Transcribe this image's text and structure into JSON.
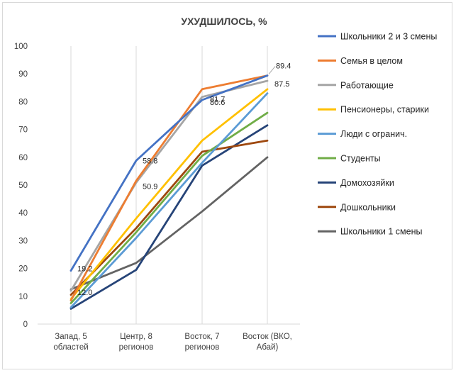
{
  "chart_data": {
    "type": "line",
    "title": "УХУДШИЛОСЬ, %",
    "xlabel": "",
    "ylabel": "",
    "ylim": [
      0,
      100
    ],
    "yticks": [
      0,
      10,
      20,
      30,
      40,
      50,
      60,
      70,
      80,
      90,
      100
    ],
    "grid": "vertical",
    "legend_position": "right",
    "categories": [
      [
        "Запад, 5",
        "областей"
      ],
      [
        "Центр, 8",
        "регионов"
      ],
      [
        "Восток, 7",
        "регионов"
      ],
      [
        "Восток (ВКО,",
        "Абай)"
      ]
    ],
    "series": [
      {
        "name": "Школьники 2 и 3 смены",
        "color": "#4472C4",
        "values": [
          19.2,
          58.8,
          80.6,
          89.4
        ]
      },
      {
        "name": "Семья в целом",
        "color": "#ED7D31",
        "values": [
          8.5,
          51.5,
          84.5,
          89.4
        ]
      },
      {
        "name": "Работающие",
        "color": "#A5A5A5",
        "values": [
          12.0,
          50.9,
          81.7,
          87.5
        ]
      },
      {
        "name": "Пенсионеры, старики",
        "color": "#FFC000",
        "values": [
          9.0,
          38.0,
          66.0,
          84.5
        ]
      },
      {
        "name": "Люди с огранич.",
        "color": "#5B9BD5",
        "values": [
          6.0,
          31.0,
          58.0,
          83.0
        ]
      },
      {
        "name": "Студенты",
        "color": "#70AD47",
        "values": [
          7.5,
          33.0,
          60.5,
          76.0
        ]
      },
      {
        "name": "Домохозяйки",
        "color": "#264478",
        "values": [
          5.5,
          19.5,
          57.0,
          71.5
        ]
      },
      {
        "name": "Дошкольники",
        "color": "#9E480E",
        "values": [
          10.5,
          34.5,
          62.0,
          66.0
        ]
      },
      {
        "name": "Школьники 1 смены",
        "color": "#636363",
        "values": [
          12.5,
          22.0,
          40.5,
          60.0
        ]
      }
    ],
    "data_labels": [
      {
        "text": "19.2",
        "series": 0,
        "point": 0
      },
      {
        "text": "58.8",
        "series": 0,
        "point": 1
      },
      {
        "text": "80.6",
        "series": 0,
        "point": 2
      },
      {
        "text": "89.4",
        "series": 0,
        "point": 3,
        "leader": true
      },
      {
        "text": "12.0",
        "series": 2,
        "point": 0
      },
      {
        "text": "50.9",
        "series": 2,
        "point": 1
      },
      {
        "text": "81.7",
        "series": 2,
        "point": 2
      },
      {
        "text": "87.5",
        "series": 2,
        "point": 3
      }
    ]
  }
}
